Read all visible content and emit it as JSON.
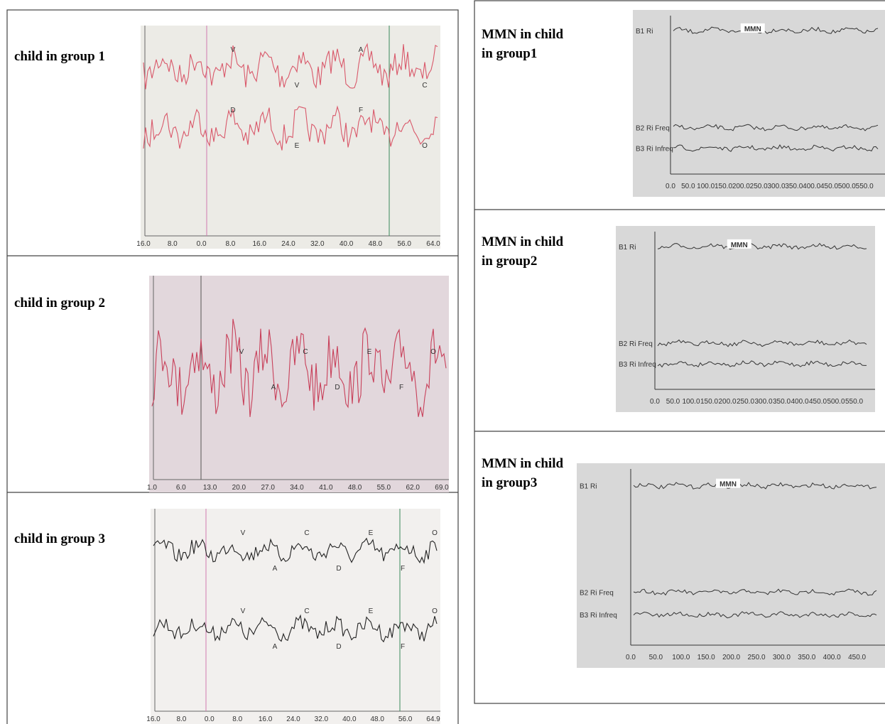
{
  "left_panels": [
    {
      "label": "child in group 1",
      "ticks": [
        "16.0",
        "8.0",
        "0.0",
        "8.0",
        "16.0",
        "24.0",
        "32.0",
        "40.0",
        "48.0",
        "56.0",
        "64.0"
      ],
      "peaks": [
        "V",
        "V",
        "A",
        "C",
        "D",
        "E",
        "F",
        "O"
      ]
    },
    {
      "label": "child in group 2",
      "ticks": [
        "1.0",
        "6.0",
        "13.0",
        "20.0",
        "27.0",
        "34.0",
        "41.0",
        "48.0",
        "55.0",
        "62.0",
        "69.0"
      ],
      "peaks": [
        "V",
        "A",
        "C",
        "D",
        "E",
        "F",
        "O"
      ]
    },
    {
      "label": "child in group 3",
      "ticks": [
        "16.0",
        "8.0",
        "0.0",
        "8.0",
        "16.0",
        "24.0",
        "32.0",
        "40.0",
        "48.0",
        "56.0",
        "64.9"
      ],
      "peaks": [
        "V",
        "A",
        "C",
        "D",
        "E",
        "F",
        "O",
        "V",
        "A",
        "C",
        "D",
        "E",
        "F",
        "O"
      ]
    }
  ],
  "right_panels": [
    {
      "label": [
        "MMN in child",
        "in group1"
      ],
      "channels": [
        "B1 Ri",
        "B2 Ri Freq",
        "B3 Ri Infreq"
      ],
      "tag": "MMN",
      "ticks": [
        "0.0",
        "50.0",
        "100.0",
        "150.0",
        "200.0",
        "250.0",
        "300.0",
        "350.0",
        "400.0",
        "450.0",
        "500.0",
        "550.0"
      ]
    },
    {
      "label": [
        "MMN in child",
        "in group2"
      ],
      "channels": [
        "B1 Ri",
        "B2 Ri Freq",
        "B3 Ri Infreq"
      ],
      "tag": "MMN",
      "ticks": [
        "0.0",
        "50.0",
        "100.0",
        "150.0",
        "200.0",
        "250.0",
        "300.0",
        "350.0",
        "400.0",
        "450.0",
        "500.0",
        "550.0"
      ]
    },
    {
      "label": [
        "MMN in child",
        "in group3"
      ],
      "channels": [
        "B1 Ri",
        "B2 Ri Freq",
        "B3 Ri Infreq"
      ],
      "tag": "MMN",
      "ticks": [
        "0.0",
        "50.0",
        "100.0",
        "150.0",
        "200.0",
        "250.0",
        "300.0",
        "350.0",
        "400.0",
        "450.0"
      ]
    }
  ]
}
